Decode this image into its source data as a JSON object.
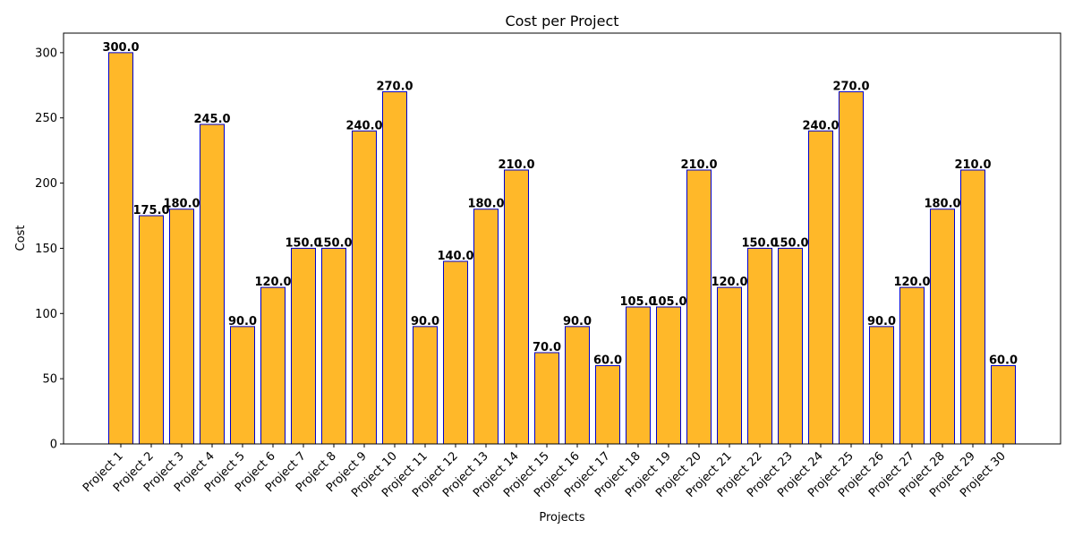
{
  "chart_data": {
    "type": "bar",
    "title": "Cost per Project",
    "xlabel": "Projects",
    "ylabel": "Cost",
    "ylim": [
      0,
      315
    ],
    "yticks": [
      0,
      50,
      100,
      150,
      200,
      250,
      300
    ],
    "grid": false,
    "legend": "none",
    "categories": [
      "Project 1",
      "Project 2",
      "Project 3",
      "Project 4",
      "Project 5",
      "Project 6",
      "Project 7",
      "Project 8",
      "Project 9",
      "Project 10",
      "Project 11",
      "Project 12",
      "Project 13",
      "Project 14",
      "Project 15",
      "Project 16",
      "Project 17",
      "Project 18",
      "Project 19",
      "Project 20",
      "Project 21",
      "Project 22",
      "Project 23",
      "Project 24",
      "Project 25",
      "Project 26",
      "Project 27",
      "Project 28",
      "Project 29",
      "Project 30"
    ],
    "values": [
      300,
      175,
      180,
      245,
      90,
      120,
      150,
      150,
      240,
      270,
      90,
      140,
      180,
      210,
      70,
      90,
      60,
      105,
      105,
      210,
      120,
      150,
      150,
      240,
      270,
      90,
      120,
      180,
      210,
      60
    ],
    "data_labels": [
      "300.0",
      "175.0",
      "180.0",
      "245.0",
      "90.0",
      "120.0",
      "150.0",
      "150.0",
      "240.0",
      "270.0",
      "90.0",
      "140.0",
      "180.0",
      "210.0",
      "70.0",
      "90.0",
      "60.0",
      "105.0",
      "105.0",
      "210.0",
      "120.0",
      "150.0",
      "150.0",
      "240.0",
      "270.0",
      "90.0",
      "120.0",
      "180.0",
      "210.0",
      "60.0"
    ],
    "colors": {
      "bar_fill": "#FFB829",
      "bar_edge": "#0000CC"
    }
  }
}
